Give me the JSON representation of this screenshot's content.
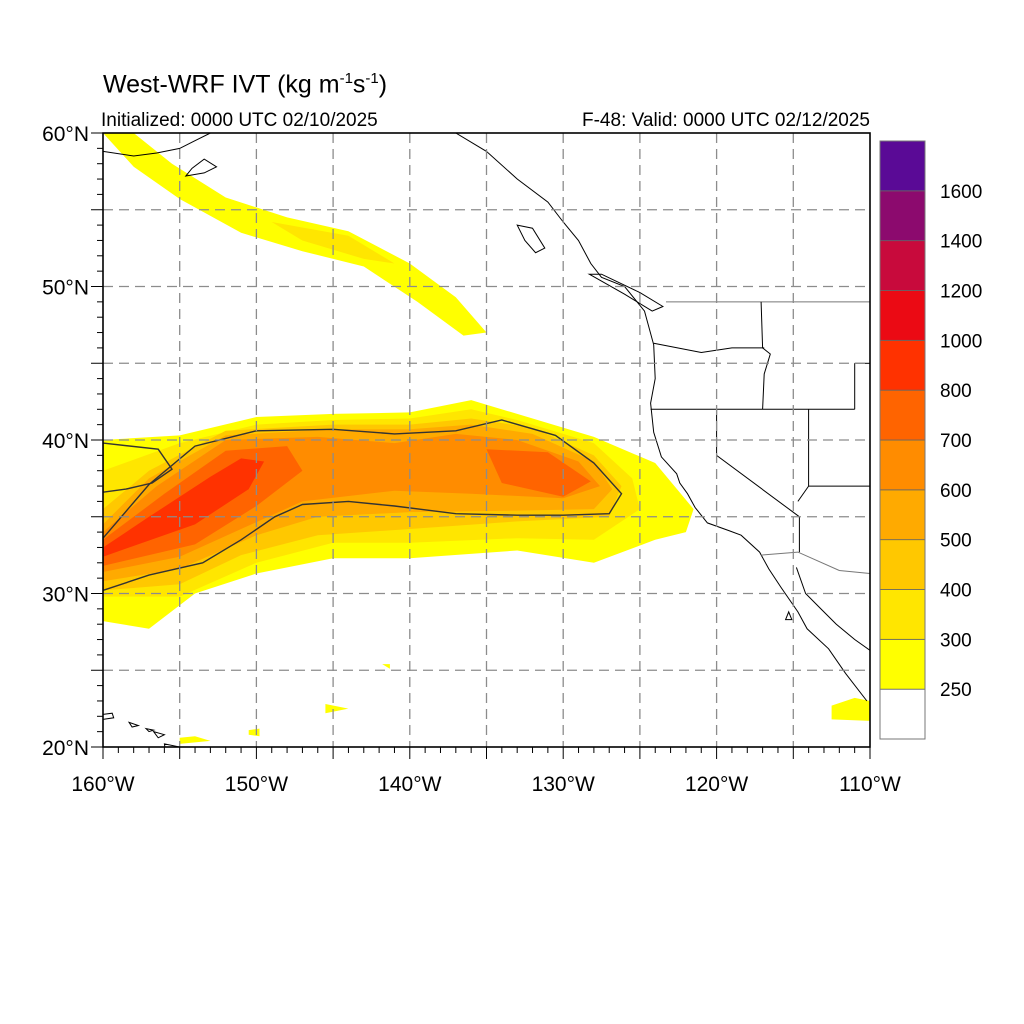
{
  "title": {
    "prefix": "West-WRF IVT (kg m",
    "exp1": "-1",
    "mid": "s",
    "exp2": "-1",
    "suffix": ")"
  },
  "subtitle_left": "Initialized: 0000 UTC 02/10/2025",
  "subtitle_right": "F-48: Valid: 0000 UTC 02/12/2025",
  "map": {
    "lon_range": [
      -160,
      -110
    ],
    "lat_range": [
      20,
      60
    ],
    "grid_lon_step": 5,
    "grid_lat_step": 5,
    "grid_style": "dashed",
    "lat_labels": [
      {
        "value": 60,
        "label": "60°N"
      },
      {
        "value": 50,
        "label": "50°N"
      },
      {
        "value": 40,
        "label": "40°N"
      },
      {
        "value": 30,
        "label": "30°N"
      },
      {
        "value": 20,
        "label": "20°N"
      }
    ],
    "lon_labels": [
      {
        "value": -160,
        "label": "160°W"
      },
      {
        "value": -150,
        "label": "150°W"
      },
      {
        "value": -140,
        "label": "140°W"
      },
      {
        "value": -130,
        "label": "130°W"
      },
      {
        "value": -120,
        "label": "120°W"
      },
      {
        "value": -110,
        "label": "110°W"
      }
    ]
  },
  "colorbar": {
    "placement": "right",
    "levels": [
      {
        "label": "250",
        "color": "#ffff00"
      },
      {
        "label": "300",
        "color": "#ffe600"
      },
      {
        "label": "400",
        "color": "#ffc800"
      },
      {
        "label": "500",
        "color": "#ffaa00"
      },
      {
        "label": "600",
        "color": "#ff8c00"
      },
      {
        "label": "700",
        "color": "#ff6400"
      },
      {
        "label": "800",
        "color": "#ff3200"
      },
      {
        "label": "1000",
        "color": "#eb0a14"
      },
      {
        "label": "1200",
        "color": "#c80a3c"
      },
      {
        "label": "1400",
        "color": "#8c0a6e"
      },
      {
        "label": "1600",
        "color": "#5a0a96"
      }
    ],
    "below_color": "#ffffff"
  },
  "ivt_features": [
    {
      "name": "main-atmospheric-river",
      "level": 0,
      "outline": [
        [
          -160,
          40
        ],
        [
          -155,
          40.3
        ],
        [
          -150,
          41.5
        ],
        [
          -145,
          41.7
        ],
        [
          -140,
          41.8
        ],
        [
          -136,
          42.6
        ],
        [
          -133,
          41.7
        ],
        [
          -128,
          40.2
        ],
        [
          -124,
          38.5
        ],
        [
          -121.5,
          35.5
        ],
        [
          -122,
          34
        ],
        [
          -124,
          33.5
        ],
        [
          -128,
          32
        ],
        [
          -133,
          32.8
        ],
        [
          -140,
          32.3
        ],
        [
          -145,
          32.3
        ],
        [
          -150,
          31.3
        ],
        [
          -154,
          30
        ],
        [
          -157,
          27.7
        ],
        [
          -160,
          28.2
        ]
      ]
    },
    {
      "name": "main-atmospheric-river",
      "level": 1,
      "outline": [
        [
          -160,
          38
        ],
        [
          -155,
          39.8
        ],
        [
          -150,
          41
        ],
        [
          -145,
          41.3
        ],
        [
          -140,
          41.4
        ],
        [
          -136,
          42
        ],
        [
          -133,
          41.3
        ],
        [
          -128,
          39.8
        ],
        [
          -125.5,
          37.5
        ],
        [
          -125,
          35.5
        ],
        [
          -128,
          33.5
        ],
        [
          -133,
          33.6
        ],
        [
          -140,
          33.3
        ],
        [
          -145,
          33.3
        ],
        [
          -150,
          32
        ],
        [
          -155,
          29.8
        ],
        [
          -160,
          29.8
        ]
      ]
    },
    {
      "name": "main-atmospheric-river",
      "level": 2,
      "outline": [
        [
          -160,
          35.5
        ],
        [
          -157,
          38
        ],
        [
          -152,
          40.6
        ],
        [
          -145,
          41
        ],
        [
          -140,
          41
        ],
        [
          -136,
          41.4
        ],
        [
          -132,
          40.8
        ],
        [
          -128,
          39
        ],
        [
          -126.2,
          37
        ],
        [
          -127,
          35
        ],
        [
          -133,
          34.7
        ],
        [
          -140,
          34.2
        ],
        [
          -146,
          33.8
        ],
        [
          -151,
          32.5
        ],
        [
          -155,
          30.6
        ],
        [
          -160,
          30.2
        ]
      ]
    },
    {
      "name": "main-atmospheric-river",
      "level": 3,
      "outline": [
        [
          -160,
          34.5
        ],
        [
          -157,
          37.5
        ],
        [
          -152,
          40.3
        ],
        [
          -145,
          40.7
        ],
        [
          -140,
          40.7
        ],
        [
          -136,
          41
        ],
        [
          -132,
          40.4
        ],
        [
          -128,
          38.6
        ],
        [
          -126.8,
          36.8
        ],
        [
          -128,
          35.5
        ],
        [
          -133,
          35.4
        ],
        [
          -140,
          35.3
        ],
        [
          -146,
          35
        ],
        [
          -150,
          33.8
        ],
        [
          -155,
          31.6
        ],
        [
          -160,
          30.8
        ]
      ]
    },
    {
      "name": "main-atmospheric-river",
      "level": 4,
      "outline": [
        [
          -160,
          34
        ],
        [
          -156.5,
          37
        ],
        [
          -152,
          40
        ],
        [
          -146,
          40.2
        ],
        [
          -141,
          39.8
        ],
        [
          -137,
          40.4
        ],
        [
          -133,
          40
        ],
        [
          -129,
          38.6
        ],
        [
          -127.6,
          37
        ],
        [
          -130,
          36.2
        ],
        [
          -136,
          36.5
        ],
        [
          -141,
          36.7
        ],
        [
          -147,
          36
        ],
        [
          -151,
          34.2
        ],
        [
          -155,
          32.4
        ],
        [
          -160,
          31.4
        ]
      ]
    },
    {
      "name": "main-atmospheric-river",
      "level": 5,
      "outline": [
        [
          -160,
          33.5
        ],
        [
          -156,
          36.5
        ],
        [
          -152,
          39.3
        ],
        [
          -148,
          39.6
        ],
        [
          -147,
          38
        ],
        [
          -150,
          35.7
        ],
        [
          -154,
          33.2
        ],
        [
          -160,
          31.8
        ]
      ]
    },
    {
      "name": "main-atmospheric-river",
      "level": 5,
      "outline": [
        [
          -135,
          39.4
        ],
        [
          -131,
          39.2
        ],
        [
          -128.2,
          37.3
        ],
        [
          -130,
          36.3
        ],
        [
          -134,
          37.2
        ]
      ]
    },
    {
      "name": "main-atmospheric-river",
      "level": 6,
      "outline": [
        [
          -160,
          33
        ],
        [
          -157,
          35
        ],
        [
          -153,
          37.6
        ],
        [
          -151,
          38.8
        ],
        [
          -149.5,
          38.6
        ],
        [
          -150.5,
          36.8
        ],
        [
          -154,
          34.5
        ],
        [
          -160,
          32.4
        ]
      ]
    },
    {
      "name": "northern-moisture-band",
      "level": 0,
      "outline": [
        [
          -158,
          60
        ],
        [
          -155.5,
          58
        ],
        [
          -152,
          55.8
        ],
        [
          -148,
          54.5
        ],
        [
          -144,
          53.6
        ],
        [
          -140,
          51.5
        ],
        [
          -137,
          49.3
        ],
        [
          -135,
          47
        ],
        [
          -136.5,
          46.8
        ],
        [
          -139.5,
          49
        ],
        [
          -143,
          51.3
        ],
        [
          -147,
          52.3
        ],
        [
          -151,
          53.5
        ],
        [
          -155,
          55.7
        ],
        [
          -158,
          57.8
        ],
        [
          -160,
          60
        ]
      ]
    },
    {
      "name": "northern-moisture-band",
      "level": 1,
      "outline": [
        [
          -149,
          54.2
        ],
        [
          -144,
          53.3
        ],
        [
          -141,
          51.5
        ],
        [
          -143,
          51.8
        ],
        [
          -147,
          53
        ]
      ]
    },
    {
      "name": "baja-moisture-patch",
      "level": 0,
      "outline": [
        [
          -112.5,
          22.7
        ],
        [
          -111,
          23.2
        ],
        [
          -110,
          23
        ],
        [
          -110,
          21.7
        ],
        [
          -112.5,
          21.8
        ]
      ]
    },
    {
      "name": "hawaii-moisture-patch",
      "level": 0,
      "outline": [
        [
          -155,
          20.6
        ],
        [
          -154,
          20.7
        ],
        [
          -153,
          20.4
        ],
        [
          -155,
          20.2
        ]
      ]
    },
    {
      "name": "small-moisture-patch",
      "level": 0,
      "outline": [
        [
          -145.5,
          22.8
        ],
        [
          -144,
          22.5
        ],
        [
          -145.5,
          22.2
        ]
      ]
    },
    {
      "name": "small-moisture-patch",
      "level": 0,
      "outline": [
        [
          -150.5,
          21.1
        ],
        [
          -149.8,
          21.2
        ],
        [
          -149.8,
          20.7
        ],
        [
          -150.5,
          20.8
        ]
      ]
    },
    {
      "name": "small-moisture-patch",
      "level": 0,
      "outline": [
        [
          -141.8,
          25.4
        ],
        [
          -141.3,
          25.4
        ],
        [
          -141.3,
          25.1
        ]
      ]
    }
  ],
  "contour_250": [
    [
      [
        -160,
        33.6
      ],
      [
        -157,
        37.1
      ],
      [
        -154,
        39.6
      ],
      [
        -150,
        40.6
      ],
      [
        -145,
        40.7
      ],
      [
        -141,
        40.4
      ],
      [
        -137,
        40.6
      ],
      [
        -134,
        41.3
      ],
      [
        -130.5,
        40.3
      ],
      [
        -128,
        38.5
      ],
      [
        -126.2,
        36.5
      ],
      [
        -127,
        35.2
      ],
      [
        -130,
        35.1
      ],
      [
        -133,
        35.1
      ],
      [
        -137,
        35.2
      ],
      [
        -141,
        35.7
      ],
      [
        -144,
        36
      ],
      [
        -147,
        35.8
      ],
      [
        -148.8,
        35
      ],
      [
        -151,
        33.5
      ],
      [
        -153.5,
        32
      ],
      [
        -157,
        31.2
      ],
      [
        -160,
        30.2
      ]
    ],
    [
      [
        -160,
        39.8
      ],
      [
        -156.4,
        39.4
      ],
      [
        -155.5,
        38.1
      ],
      [
        -156.8,
        37.2
      ],
      [
        -158.5,
        36.8
      ],
      [
        -160,
        36.6
      ]
    ]
  ],
  "geography": {
    "coastline": [
      [
        -137,
        60
      ],
      [
        -135,
        58.8
      ],
      [
        -133,
        57
      ],
      [
        -131,
        55.5
      ],
      [
        -130,
        54.2
      ],
      [
        -129,
        53
      ],
      [
        -128.2,
        51.5
      ],
      [
        -127.5,
        50.6
      ],
      [
        -126,
        50
      ],
      [
        -124.7,
        48.4
      ],
      [
        -124.1,
        46.2
      ],
      [
        -124,
        44
      ],
      [
        -124.3,
        42.4
      ],
      [
        -124.1,
        40.5
      ],
      [
        -123.6,
        38.9
      ],
      [
        -122.6,
        37.8
      ],
      [
        -122.4,
        37.2
      ],
      [
        -121.9,
        36.5
      ],
      [
        -121.4,
        35.6
      ],
      [
        -120.6,
        34.6
      ],
      [
        -119.2,
        34.1
      ],
      [
        -118.4,
        33.8
      ],
      [
        -117.2,
        32.7
      ],
      [
        -116.6,
        31.6
      ],
      [
        -115.8,
        30.4
      ],
      [
        -114.7,
        28.8
      ],
      [
        -114.1,
        27.7
      ],
      [
        -112.7,
        26.4
      ],
      [
        -111.6,
        24.8
      ],
      [
        -110.2,
        23
      ]
    ],
    "gulf_coast": [
      [
        -114.8,
        31.7
      ],
      [
        -114.2,
        30
      ],
      [
        -113.2,
        29
      ],
      [
        -112.2,
        28
      ],
      [
        -111,
        27
      ],
      [
        -110,
        26.3
      ]
    ],
    "vancouver_island": [
      [
        -128.3,
        50.8
      ],
      [
        -126,
        49.5
      ],
      [
        -124.2,
        48.4
      ],
      [
        -123.5,
        48.7
      ],
      [
        -125,
        49.6
      ],
      [
        -127.5,
        50.8
      ]
    ],
    "haida_gwaii": [
      [
        -133,
        54
      ],
      [
        -132,
        53.8
      ],
      [
        -131.2,
        52.5
      ],
      [
        -131.8,
        52.2
      ],
      [
        -132.5,
        53
      ]
    ],
    "islands": [
      [
        -115.5,
        28.3
      ],
      [
        -115.3,
        28.8
      ],
      [
        -115.1,
        28.3
      ]
    ],
    "alaska_peninsula": [
      [
        -160,
        58.8
      ],
      [
        -158,
        58.5
      ],
      [
        -156.5,
        58.7
      ],
      [
        -155,
        59
      ],
      [
        -154,
        59.5
      ],
      [
        -153,
        60
      ]
    ],
    "kodiak": [
      [
        -154.6,
        57.2
      ],
      [
        -153.4,
        57.4
      ],
      [
        -152.6,
        57.8
      ],
      [
        -153.4,
        58.3
      ],
      [
        -154.2,
        57.7
      ]
    ],
    "hawaii": [
      [
        [
          -160.2,
          22.1
        ],
        [
          -159.4,
          22.2
        ],
        [
          -159.3,
          21.9
        ],
        [
          -160,
          21.8
        ]
      ],
      [
        [
          -158.3,
          21.6
        ],
        [
          -157.7,
          21.4
        ],
        [
          -158.1,
          21.3
        ]
      ],
      [
        [
          -157.2,
          21.2
        ],
        [
          -156.7,
          21.1
        ],
        [
          -157,
          21
        ]
      ],
      [
        [
          -156.7,
          21
        ],
        [
          -156,
          20.8
        ],
        [
          -156.4,
          20.6
        ]
      ],
      [
        [
          -156,
          20.2
        ],
        [
          -155,
          20
        ],
        [
          -154.8,
          19.4
        ],
        [
          -155.8,
          19
        ]
      ]
    ],
    "border_us_canada": [
      [
        -123.3,
        49
      ],
      [
        -110,
        49
      ]
    ],
    "border_us_mexico": [
      [
        -117.1,
        32.5
      ],
      [
        -114.7,
        32.7
      ],
      [
        -112,
        31.5
      ],
      [
        -110,
        31.3
      ]
    ],
    "state_borders": [
      [
        [
          -117.1,
          49
        ],
        [
          -117,
          46
        ],
        [
          -116.5,
          45.6
        ],
        [
          -116.9,
          44.3
        ],
        [
          -117,
          42
        ]
      ],
      [
        [
          -124.1,
          46.3
        ],
        [
          -121,
          45.7
        ],
        [
          -119,
          46
        ],
        [
          -116.9,
          46
        ]
      ],
      [
        [
          -124.3,
          42
        ],
        [
          -120,
          42
        ],
        [
          -111,
          42
        ]
      ],
      [
        [
          -120,
          42
        ],
        [
          -120,
          39
        ],
        [
          -114.6,
          35
        ],
        [
          -114.6,
          32.7
        ]
      ],
      [
        [
          -114,
          42
        ],
        [
          -114,
          37
        ],
        [
          -114.7,
          36
        ]
      ],
      [
        [
          -114,
          37
        ],
        [
          -110,
          37
        ]
      ],
      [
        [
          -111,
          45
        ],
        [
          -111,
          42
        ]
      ],
      [
        [
          -111,
          45
        ],
        [
          -110,
          45
        ]
      ]
    ]
  }
}
